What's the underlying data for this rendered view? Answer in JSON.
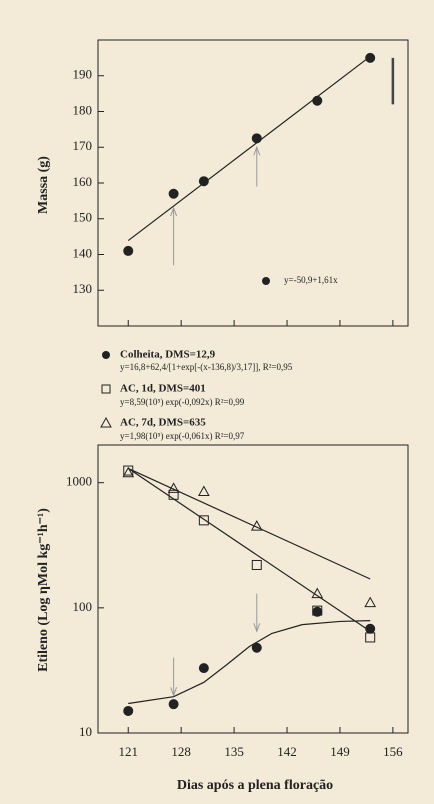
{
  "chart_data": [
    {
      "type": "scatter",
      "y_label": "Massa (g)",
      "xlim": [
        117,
        158
      ],
      "xticks": [
        121,
        128,
        135,
        142,
        149,
        156
      ],
      "ylim": [
        120,
        200
      ],
      "yticks": [
        130,
        140,
        150,
        160,
        170,
        180,
        190
      ],
      "series": [
        {
          "equation": "y=-50,9+1,61x",
          "color": "#222",
          "marker": "circle",
          "filled": true,
          "x": [
            121,
            127,
            131,
            138,
            146,
            153
          ],
          "values": [
            141,
            157,
            160.5,
            172.5,
            183,
            195
          ],
          "fit": {
            "x": [
              121,
              153
            ],
            "values": [
              143.9,
              195.4
            ]
          }
        }
      ],
      "arrows": [
        {
          "x": 127,
          "from": 137,
          "to": 153
        },
        {
          "x": 138,
          "from": 159,
          "to": 170
        }
      ],
      "bar": {
        "x": 156,
        "from": 182,
        "to": 195
      }
    },
    {
      "type": "scatter",
      "y_label": "Etileno (Log ηMol kg⁻¹h⁻¹)",
      "x_label": "Dias após a plena floração",
      "log_y": true,
      "xlim": [
        117,
        158
      ],
      "xticks": [
        121,
        128,
        135,
        142,
        149,
        156
      ],
      "ylim": [
        10,
        2000
      ],
      "yticks": [
        10,
        100,
        1000
      ],
      "series": [
        {
          "name": "Colheita, DMS=12,9",
          "equation": "y=16,8+62,4/[1+exp[-(x-136,8)/3,17]], R²=0,95",
          "color": "#222",
          "marker": "circle",
          "filled": true,
          "x": [
            121,
            127,
            131,
            138,
            146,
            153
          ],
          "values": [
            15,
            17,
            33,
            48,
            93,
            68
          ],
          "fit": {
            "x": [
              121,
              127,
              131,
              134,
              137,
              140,
              144,
              149,
              153
            ],
            "values": [
              17.2,
              19.5,
              25.4,
              35,
              49,
              62.5,
              73.4,
              77.9,
              79
            ]
          }
        },
        {
          "name": "AC, 1d, DMS=401",
          "equation": "y=8,59(10⁵) exp(-0,092x) R²=0,99",
          "color": "#222",
          "marker": "square",
          "filled": false,
          "x": [
            121,
            127,
            131,
            138,
            146,
            153
          ],
          "values": [
            1250,
            800,
            500,
            220,
            95,
            58
          ],
          "fit": {
            "x": [
              121,
              153
            ],
            "values": [
              1300,
              65
            ]
          }
        },
        {
          "name": "AC, 7d, DMS=635",
          "equation": "y=1,98(10⁵) exp(-0,061x) R²=0,97",
          "color": "#222",
          "marker": "triangle",
          "filled": false,
          "x": [
            121,
            127,
            131,
            138,
            146,
            153
          ],
          "values": [
            1200,
            900,
            850,
            450,
            130,
            110
          ],
          "fit": {
            "x": [
              121,
              153
            ],
            "values": [
              1300,
              170
            ]
          }
        }
      ],
      "arrows": [
        {
          "x": 127,
          "from": 40,
          "to": 20
        },
        {
          "x": 138,
          "from": 130,
          "to": 65
        }
      ]
    }
  ]
}
